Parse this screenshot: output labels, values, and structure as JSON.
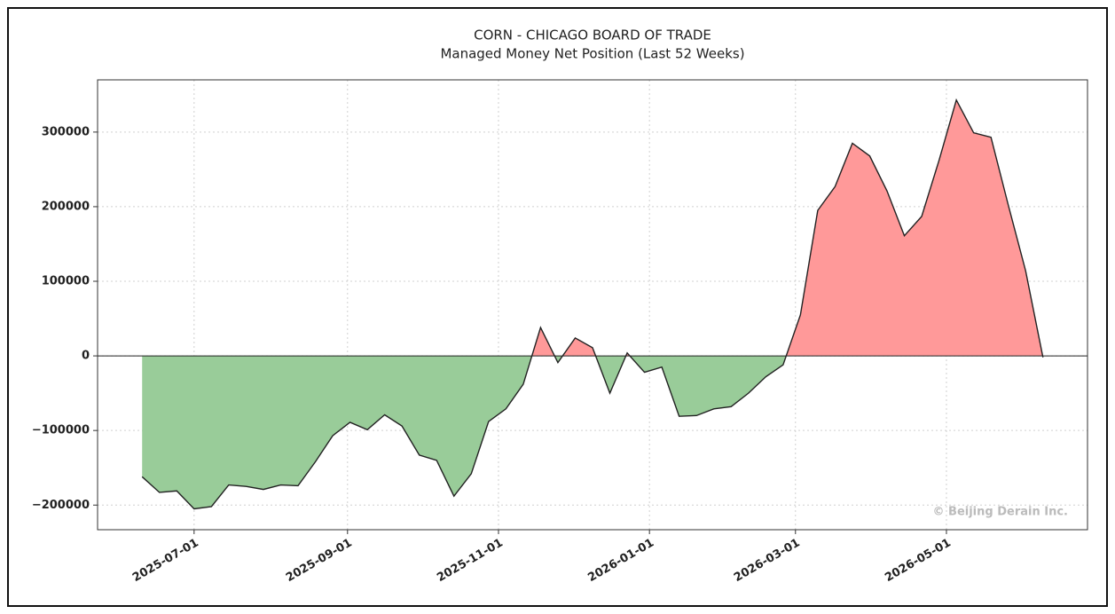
{
  "chart_data": {
    "type": "area",
    "title": "CORN - CHICAGO BOARD OF TRADE",
    "subtitle": "Managed Money Net Position (Last 52 Weeks)",
    "annotation": "© Beijing Derain Inc.",
    "x": [
      "2025-06-10",
      "2025-06-17",
      "2025-06-24",
      "2025-07-01",
      "2025-07-08",
      "2025-07-15",
      "2025-07-22",
      "2025-07-29",
      "2025-08-05",
      "2025-08-12",
      "2025-08-19",
      "2025-08-26",
      "2025-09-02",
      "2025-09-09",
      "2025-09-16",
      "2025-09-23",
      "2025-09-30",
      "2025-10-07",
      "2025-10-14",
      "2025-10-21",
      "2025-10-28",
      "2025-11-04",
      "2025-11-11",
      "2025-11-18",
      "2025-11-25",
      "2025-12-02",
      "2025-12-09",
      "2025-12-16",
      "2025-12-23",
      "2025-12-30",
      "2026-01-06",
      "2026-01-13",
      "2026-01-20",
      "2026-01-27",
      "2026-02-03",
      "2026-02-10",
      "2026-02-17",
      "2026-02-24",
      "2026-03-03",
      "2026-03-10",
      "2026-03-17",
      "2026-03-24",
      "2026-03-31",
      "2026-04-07",
      "2026-04-14",
      "2026-04-21",
      "2026-04-28",
      "2026-05-05",
      "2026-05-12",
      "2026-05-19",
      "2026-05-26",
      "2026-06-02",
      "2026-06-09"
    ],
    "values": [
      -162000,
      -183000,
      -181000,
      -205000,
      -202000,
      -173000,
      -175000,
      -179000,
      -173000,
      -174000,
      -142000,
      -107000,
      -89000,
      -99000,
      -79000,
      -94000,
      -133000,
      -140000,
      -188000,
      -158000,
      -88000,
      -71000,
      -38000,
      38000,
      -9000,
      24000,
      11000,
      -50000,
      4000,
      -22000,
      -15000,
      -81000,
      -80000,
      -71000,
      -68000,
      -50000,
      -28000,
      -12000,
      55000,
      195000,
      227000,
      285000,
      268000,
      221000,
      161000,
      187000,
      262000,
      343000,
      299000,
      293000,
      202000,
      114000,
      -2000
    ],
    "positive_color": "#ff9999",
    "negative_color": "#99cc99",
    "line_color": "#222222",
    "xlim": [
      "2025-05-23",
      "2026-06-27"
    ],
    "xticks": [
      "2025-07-01",
      "2025-09-01",
      "2025-11-01",
      "2026-01-01",
      "2026-03-01",
      "2026-05-01"
    ],
    "ylim": [
      -233000,
      370000
    ],
    "yticks": [
      {
        "value": -200000,
        "label": "−200000"
      },
      {
        "value": -100000,
        "label": "−100000"
      },
      0,
      100000,
      200000,
      300000
    ],
    "grid": true
  }
}
